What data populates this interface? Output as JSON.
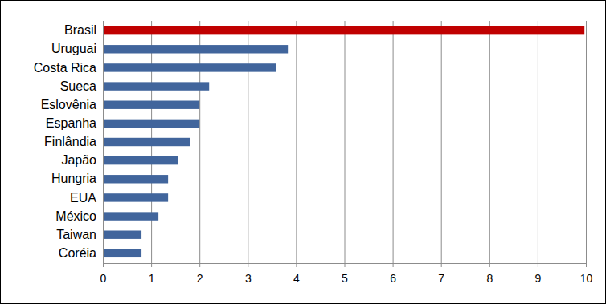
{
  "chart_data": {
    "type": "bar",
    "orientation": "horizontal",
    "categories": [
      "Brasil",
      "Uruguai",
      "Costa Rica",
      "Sueca",
      "Eslovênia",
      "Espanha",
      "Finlândia",
      "Japão",
      "Hungria",
      "EUA",
      "México",
      "Taiwan",
      "Coréia"
    ],
    "values": [
      9.97,
      3.83,
      3.58,
      2.2,
      2.0,
      2.0,
      1.8,
      1.55,
      1.35,
      1.35,
      1.15,
      0.8,
      0.8
    ],
    "colors": [
      "#c00000",
      "#41659c",
      "#41659c",
      "#41659c",
      "#41659c",
      "#41659c",
      "#41659c",
      "#41659c",
      "#41659c",
      "#41659c",
      "#41659c",
      "#41659c",
      "#41659c"
    ],
    "xlim": [
      0,
      10
    ],
    "xticks": [
      0,
      1,
      2,
      3,
      4,
      5,
      6,
      7,
      8,
      9,
      10
    ],
    "grid": true
  }
}
